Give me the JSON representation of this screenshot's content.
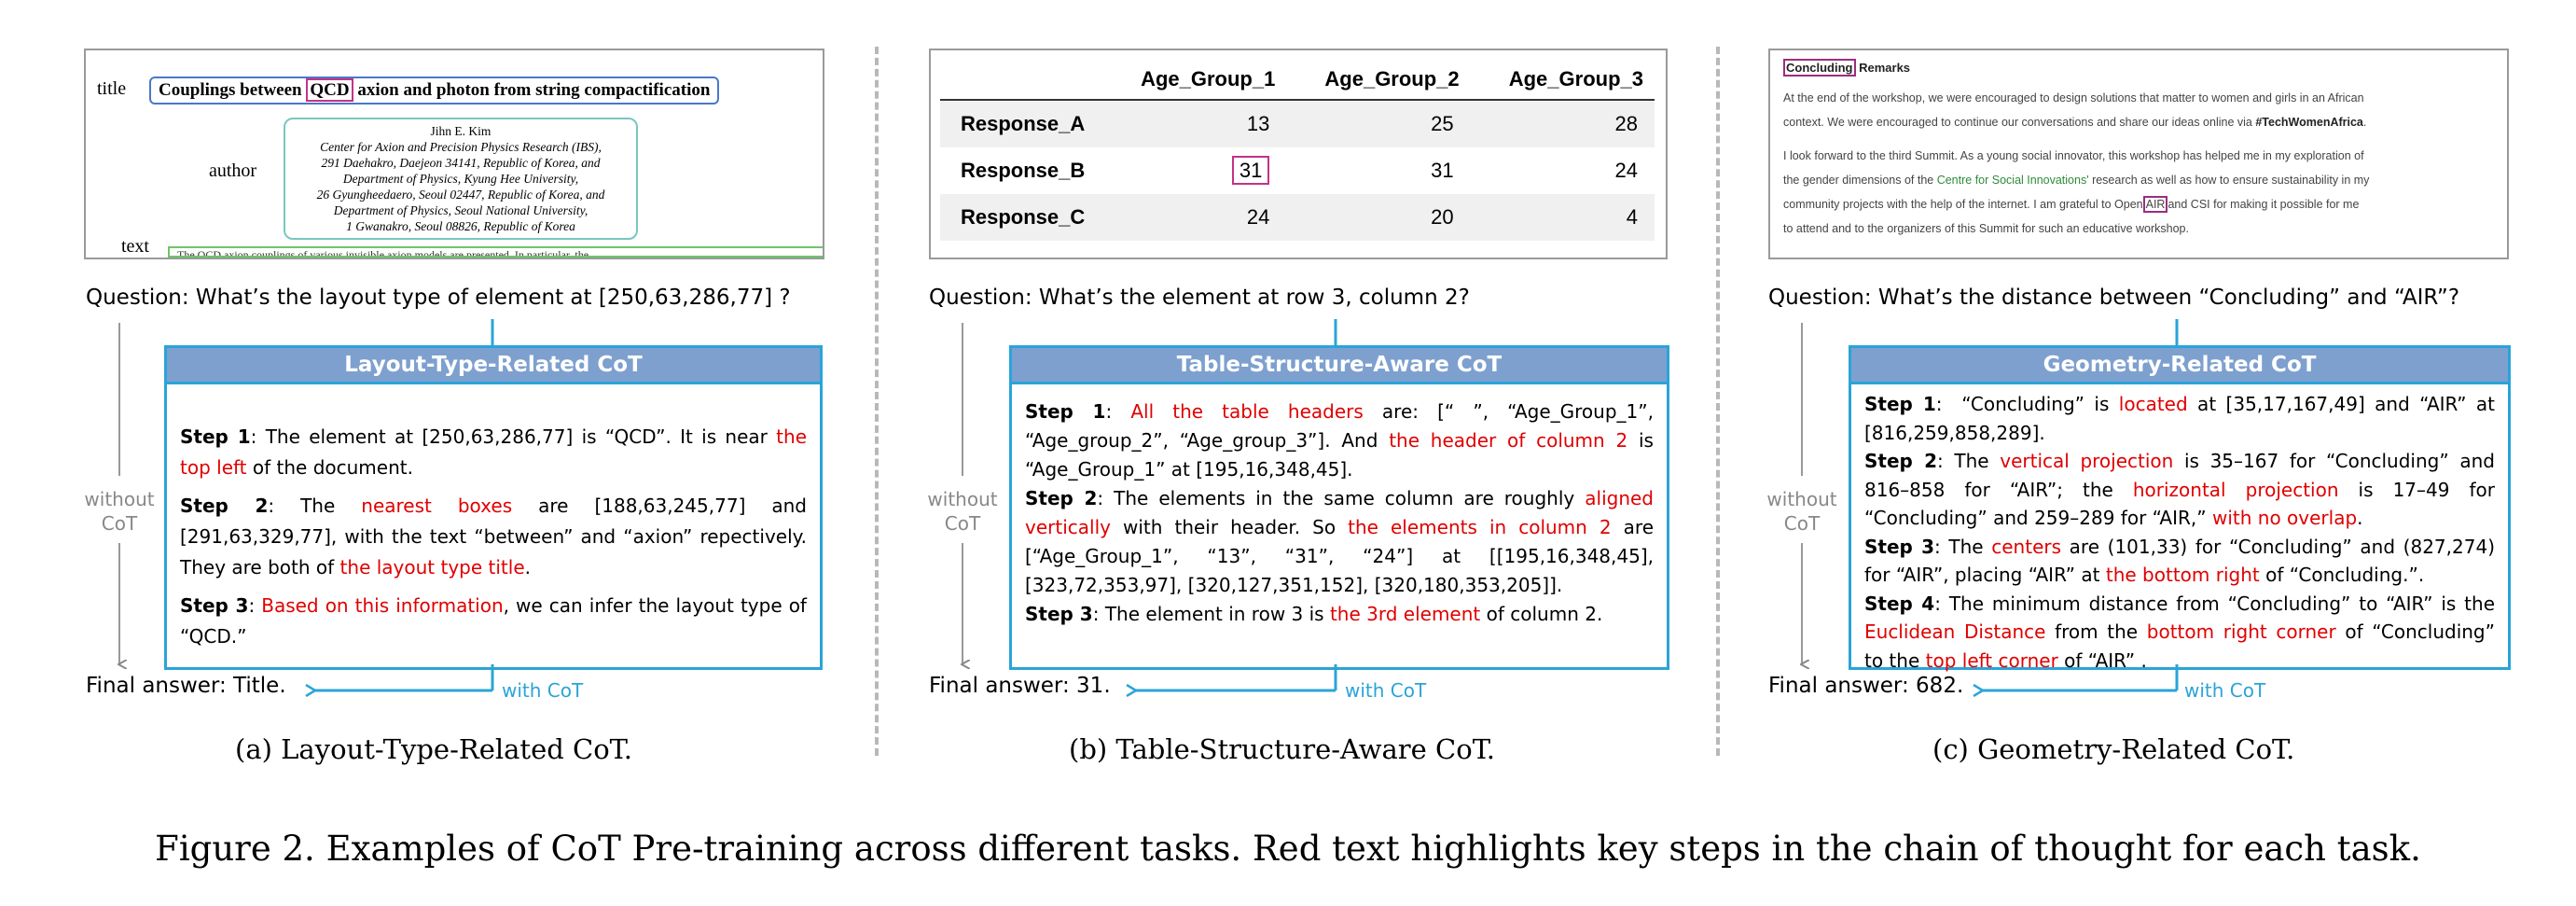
{
  "panel_a": {
    "doc": {
      "title_label": "title",
      "title_pre": "Couplings between ",
      "title_hl": "QCD",
      "title_post": " axion and photon from string compactification",
      "author_label": "author",
      "author_name": "Jihn E. Kim",
      "author_lines": [
        "Center for Axion and Precision Physics Research (IBS),",
        "291 Daehakro, Daejeon 34141, Republic of Korea, and",
        "Department of Physics, Kyung Hee University,",
        "26 Gyungheedaero, Seoul 02447, Republic of Korea, and",
        "Department of Physics, Seoul National University,",
        "1 Gwanakro, Seoul 08826, Republic of Korea"
      ],
      "text_label": "text",
      "text_line": "The QCD axion couplings of various invisible axion models are presented. In particular, the"
    },
    "question": "Question: What’s the layout type of element at [250,63,286,77] ?",
    "cot_title": "Layout-Type-Related CoT",
    "without": "without",
    "cot_word": "CoT",
    "final": "Final answer: Title.",
    "with_cot": "with CoT",
    "caption": "(a) Layout-Type-Related CoT."
  },
  "panel_b": {
    "table": {
      "headers": [
        "Age_Group_1",
        "Age_Group_2",
        "Age_Group_3"
      ],
      "rows": [
        {
          "label": "Response_A",
          "values": [
            "13",
            "25",
            "28"
          ]
        },
        {
          "label": "Response_B",
          "values": [
            "31",
            "31",
            "24"
          ]
        },
        {
          "label": "Response_C",
          "values": [
            "24",
            "20",
            "4"
          ]
        }
      ]
    },
    "question": "Question: What’s the element at row 3, column 2?",
    "cot_title": "Table-Structure-Aware CoT",
    "without": "without",
    "cot_word": "CoT",
    "final": "Final answer: 31.",
    "with_cot": "with CoT",
    "caption": "(b) Table-Structure-Aware CoT."
  },
  "panel_c": {
    "doc": {
      "title_hl": "Concluding",
      "title_rest": " Remarks",
      "p1_a": "At the end of the workshop, we were encouraged to design solutions that matter to women and girls in an African",
      "p1_b": "context. We were encouraged to continue our conversations and share our ideas online via ",
      "p1_tag": "#TechWomenAfrica",
      "p1_end": ".",
      "p2_a": "I look forward to the third Summit. As a young social innovator, this workshop has helped me in my exploration of",
      "p2_b1": "the gender dimensions of the ",
      "p2_link": "Centre for Social Innovations'",
      "p2_b2": " research as well as how to ensure sustainability in my",
      "p2_c1": "community projects with the help of the internet. I am grateful to Open",
      "p2_hl": "AIR",
      "p2_c2": "and CSI for making it possible for me",
      "p2_d": "to attend and to the organizers of this Summit for such an educative workshop."
    },
    "question": "Question: What’s the distance between “Concluding” and “AIR”?",
    "cot_title": "Geometry-Related CoT",
    "without": "without",
    "cot_word": "CoT",
    "final": "Final answer: 682.",
    "with_cot": "with CoT",
    "caption": "(c) Geometry-Related CoT."
  },
  "figure_caption": "Figure 2. Examples of CoT Pre-training across different tasks. Red text highlights key steps in the chain of thought for each task.",
  "colors": {
    "highlight": "#e00000",
    "cot_border": "#2aa4d8",
    "cot_header": "#7da0cf",
    "box_pink": "#c2338a"
  }
}
